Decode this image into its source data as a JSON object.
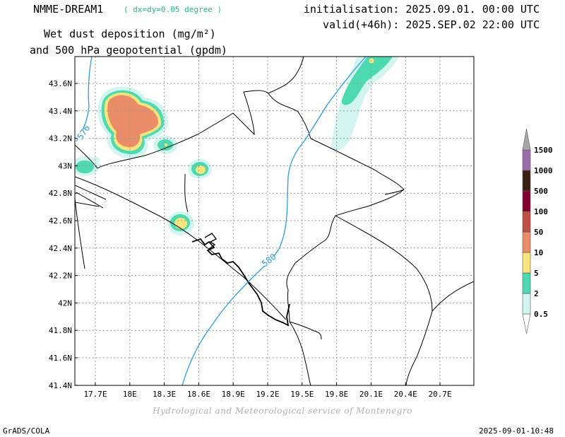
{
  "header": {
    "model": "NMME-DREAM1",
    "resolution": "( dx=dy=0.05 degree )",
    "initialisation": "initialisation: 2025.09.01. 00:00 UTC",
    "valid": "valid(+46h): 2025.SEP.02 22:00 UTC",
    "variable_line1": "Wet dust deposition (mg/m²)",
    "variable_line2": "and 500 hPa geopotential (gpdm)"
  },
  "axes": {
    "lat_labels": [
      "43.6N",
      "43.4N",
      "43.2N",
      "43N",
      "42.8N",
      "42.6N",
      "42.4N",
      "42.2N",
      "42N",
      "41.8N",
      "41.6N",
      "41.4N"
    ],
    "lon_labels": [
      "17.7E",
      "18E",
      "18.3E",
      "18.6E",
      "18.9E",
      "19.2E",
      "19.5E",
      "19.8E",
      "20.1E",
      "20.4E",
      "20.7E"
    ]
  },
  "contours": {
    "label_576": "576",
    "label_580": "580",
    "color": "#2a9de8"
  },
  "legend": {
    "levels": [
      "0.5",
      "2",
      "5",
      "10",
      "50",
      "100",
      "500",
      "1000",
      "1500"
    ],
    "colors": [
      "#d2f5f0",
      "#4ddab0",
      "#f7e47c",
      "#ea8c68",
      "#bf5048",
      "#82002e",
      "#3a2010",
      "#9a6fa8",
      "#a8a8a8"
    ]
  },
  "footer": {
    "credit": "Hydrological and Meteorological service of Montenegro",
    "software": "GrADS/COLA",
    "timestamp": "2025-09-01-10:48"
  }
}
